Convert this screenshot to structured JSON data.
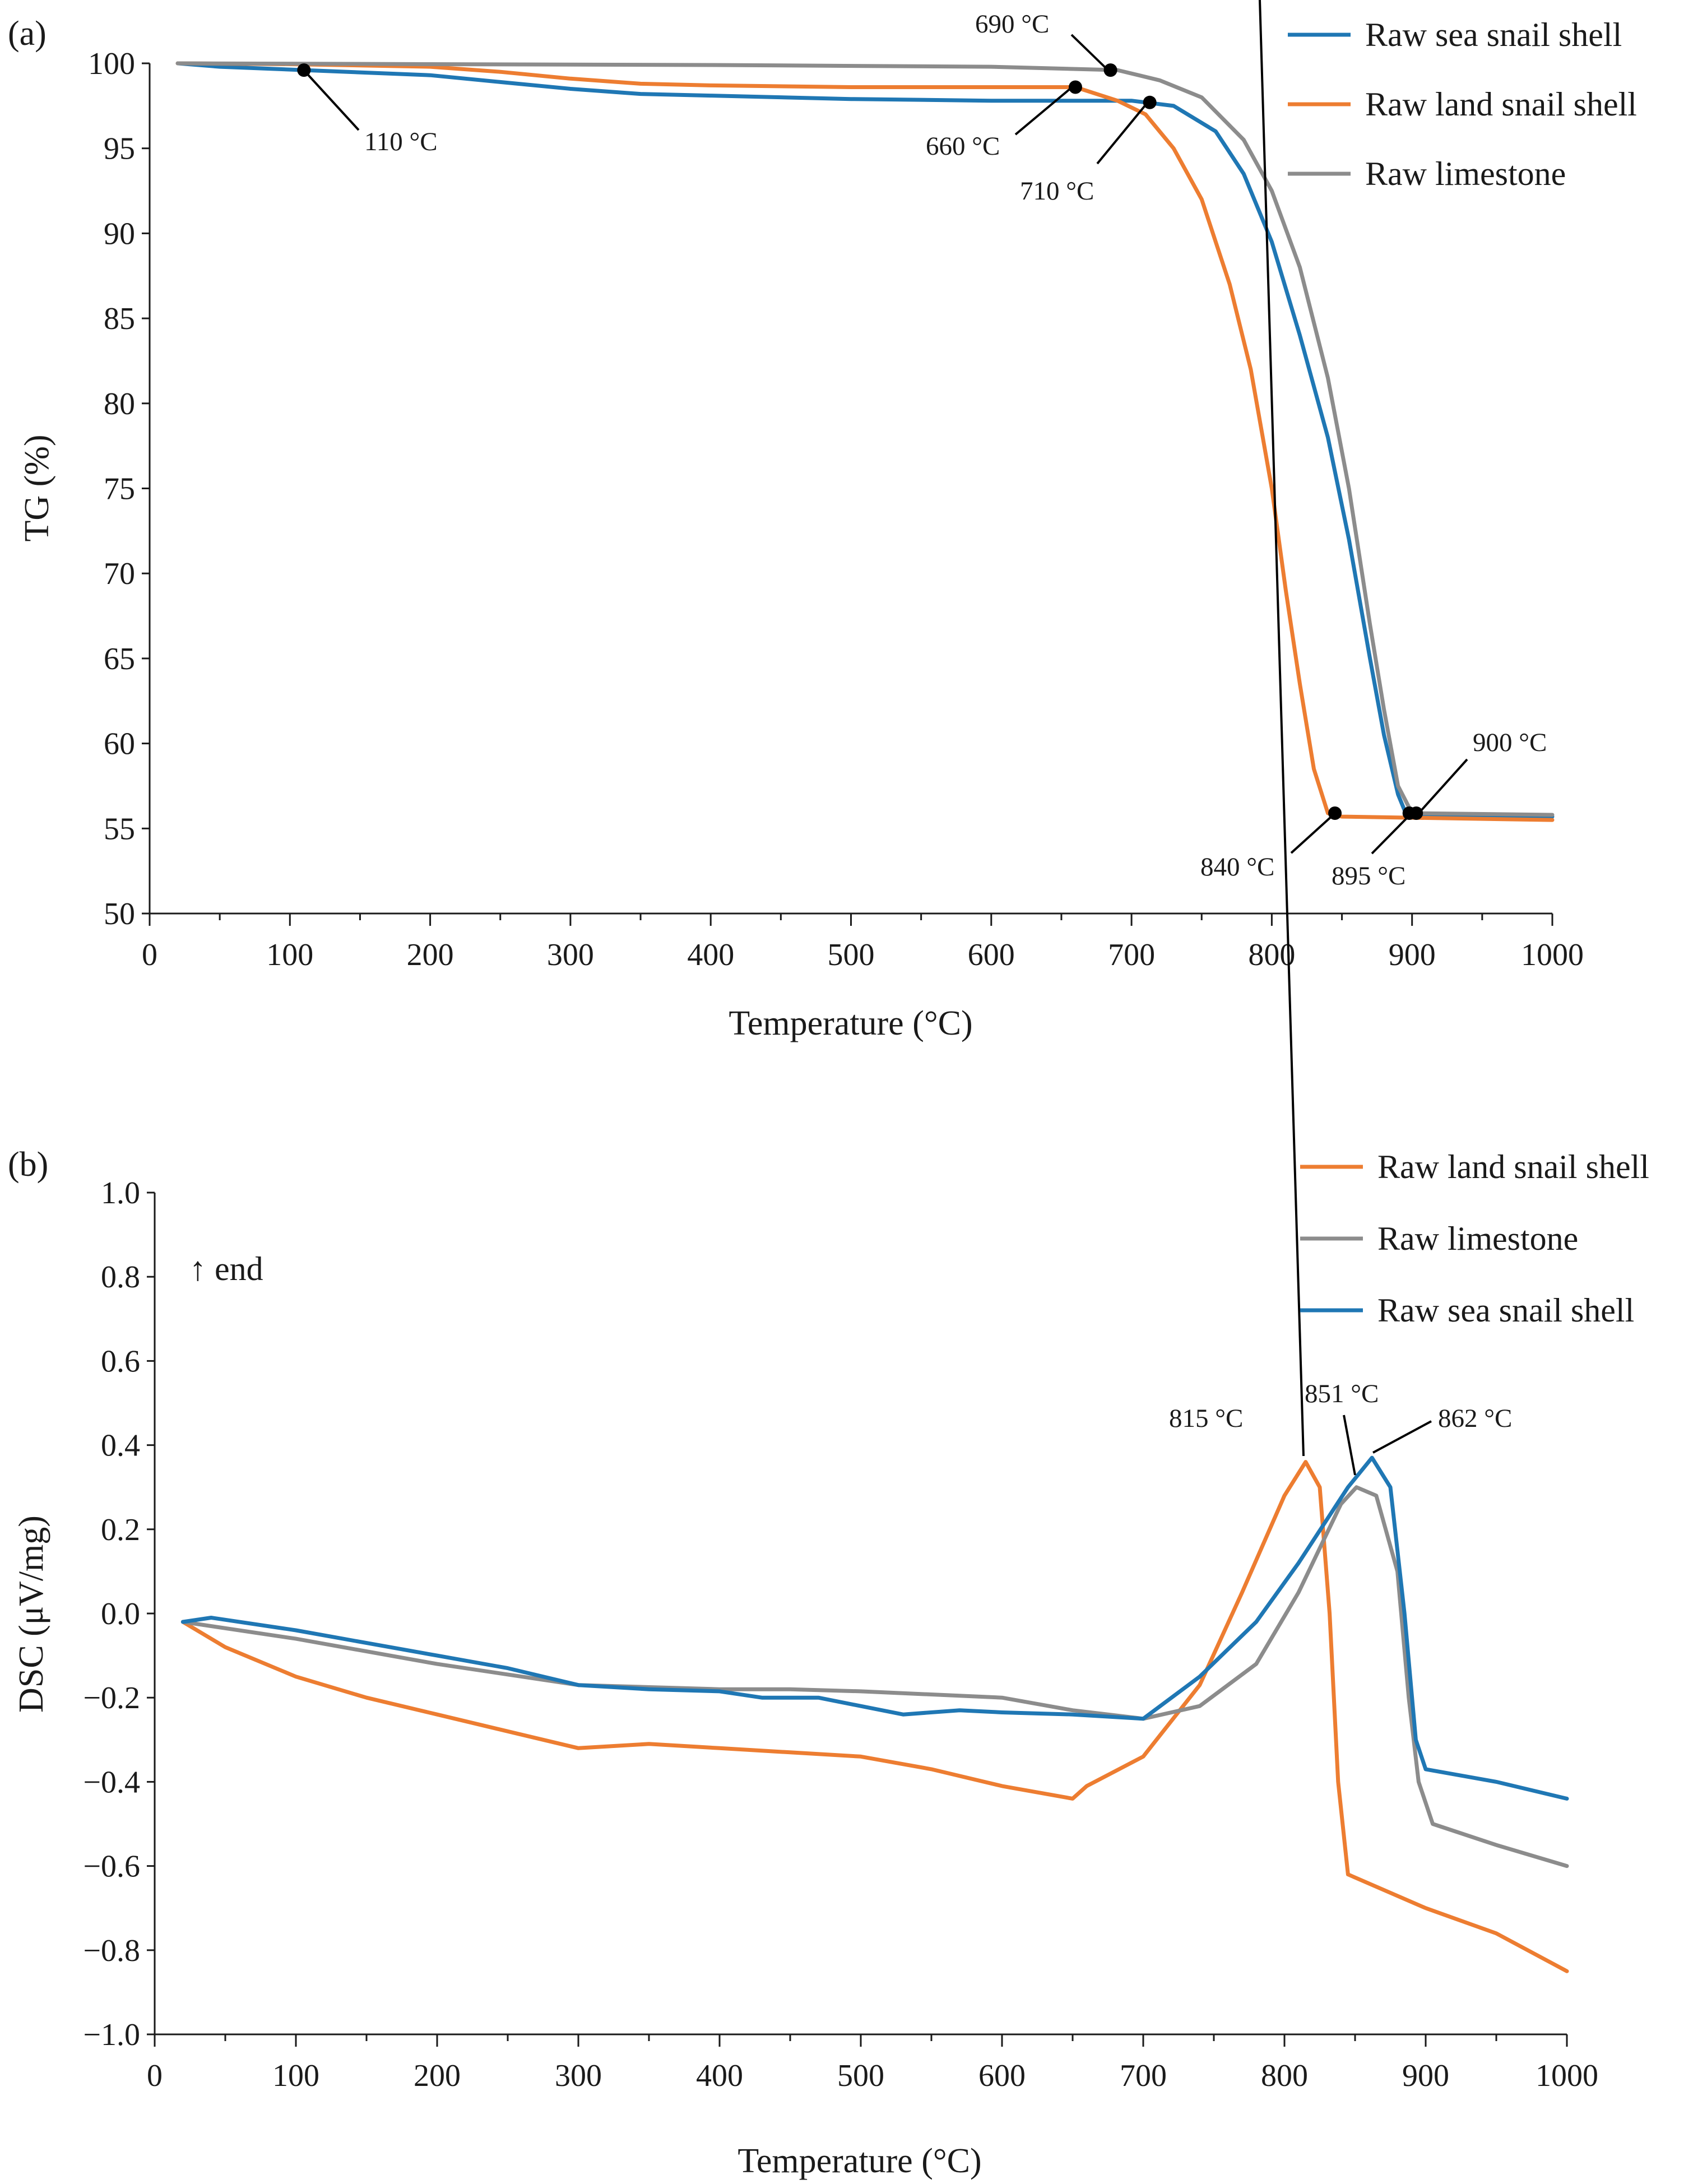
{
  "chart_data": [
    {
      "panel_label": "(a)",
      "type": "line",
      "xlabel": "Temperature (°C)",
      "ylabel": "TG (%)",
      "xlim": [
        0,
        1000
      ],
      "ylim": [
        50,
        100
      ],
      "x_ticks": [
        0,
        100,
        200,
        300,
        400,
        500,
        600,
        700,
        800,
        900,
        1000
      ],
      "y_ticks": [
        50,
        55,
        60,
        65,
        70,
        75,
        80,
        85,
        90,
        95,
        100
      ],
      "legend": [
        "Raw sea snail shell",
        "Raw land snail shell",
        "Raw limestone"
      ],
      "series": [
        {
          "name": "Raw sea snail shell",
          "color": "#1f77b4",
          "points": [
            [
              20,
              100
            ],
            [
              50,
              99.8
            ],
            [
              110,
              99.6
            ],
            [
              200,
              99.3
            ],
            [
              250,
              98.9
            ],
            [
              300,
              98.5
            ],
            [
              350,
              98.2
            ],
            [
              400,
              98.1
            ],
            [
              500,
              97.9
            ],
            [
              600,
              97.8
            ],
            [
              650,
              97.8
            ],
            [
              700,
              97.8
            ],
            [
              730,
              97.5
            ],
            [
              760,
              96.0
            ],
            [
              780,
              93.5
            ],
            [
              800,
              89.5
            ],
            [
              820,
              84.0
            ],
            [
              840,
              78.0
            ],
            [
              855,
              72.0
            ],
            [
              870,
              65.0
            ],
            [
              880,
              60.5
            ],
            [
              890,
              57.0
            ],
            [
              895,
              56.0
            ],
            [
              900,
              55.8
            ],
            [
              1000,
              55.7
            ]
          ]
        },
        {
          "name": "Raw land snail shell",
          "color": "#ed7d31",
          "points": [
            [
              20,
              100
            ],
            [
              100,
              99.95
            ],
            [
              200,
              99.8
            ],
            [
              250,
              99.5
            ],
            [
              300,
              99.1
            ],
            [
              350,
              98.8
            ],
            [
              400,
              98.7
            ],
            [
              500,
              98.6
            ],
            [
              600,
              98.6
            ],
            [
              660,
              98.6
            ],
            [
              690,
              97.8
            ],
            [
              710,
              97.0
            ],
            [
              730,
              95.0
            ],
            [
              750,
              92.0
            ],
            [
              770,
              87.0
            ],
            [
              785,
              82.0
            ],
            [
              800,
              75.0
            ],
            [
              810,
              69.0
            ],
            [
              820,
              63.5
            ],
            [
              830,
              58.5
            ],
            [
              840,
              55.9
            ],
            [
              850,
              55.7
            ],
            [
              1000,
              55.5
            ]
          ]
        },
        {
          "name": "Raw limestone",
          "color": "#8c8c8c",
          "points": [
            [
              20,
              100
            ],
            [
              200,
              99.95
            ],
            [
              400,
              99.9
            ],
            [
              600,
              99.8
            ],
            [
              690,
              99.6
            ],
            [
              720,
              99.0
            ],
            [
              750,
              98.0
            ],
            [
              780,
              95.5
            ],
            [
              800,
              92.5
            ],
            [
              820,
              88.0
            ],
            [
              840,
              81.5
            ],
            [
              855,
              75.0
            ],
            [
              870,
              67.0
            ],
            [
              880,
              62.0
            ],
            [
              890,
              57.5
            ],
            [
              900,
              55.9
            ],
            [
              1000,
              55.8
            ]
          ]
        }
      ],
      "annotations": [
        {
          "label": "110 °C",
          "x": 110,
          "y": 99.6
        },
        {
          "label": "660 °C",
          "x": 660,
          "y": 98.6
        },
        {
          "label": "690 °C",
          "x": 685,
          "y": 99.6
        },
        {
          "label": "710 °C",
          "x": 713,
          "y": 97.7
        },
        {
          "label": "840 °C",
          "x": 845,
          "y": 55.9
        },
        {
          "label": "895 °C",
          "x": 898,
          "y": 55.9
        },
        {
          "label": "900 °C",
          "x": 903,
          "y": 55.9
        }
      ]
    },
    {
      "panel_label": "(b)",
      "type": "line",
      "xlabel": "Temperature (°C)",
      "ylabel": "DSC (μV/mg)",
      "xlim": [
        0,
        1000
      ],
      "ylim": [
        -1.0,
        1.0
      ],
      "x_ticks": [
        0,
        100,
        200,
        300,
        400,
        500,
        600,
        700,
        800,
        900,
        1000
      ],
      "y_ticks": [
        -1.0,
        -0.8,
        -0.6,
        -0.4,
        -0.2,
        0.0,
        0.2,
        0.4,
        0.6,
        0.8,
        1.0
      ],
      "y_tick_labels": [
        "−1.0",
        "−0.8",
        "−0.6",
        "−0.4",
        "−0.2",
        "0.0",
        "0.2",
        "0.4",
        "0.6",
        "0.8",
        "1.0"
      ],
      "inner_note": "↑ end",
      "legend": [
        "Raw land snail shell",
        "Raw limestone",
        "Raw sea snail shell"
      ],
      "series": [
        {
          "name": "Raw land snail shell",
          "color": "#ed7d31",
          "points": [
            [
              20,
              -0.02
            ],
            [
              50,
              -0.08
            ],
            [
              100,
              -0.15
            ],
            [
              150,
              -0.2
            ],
            [
              200,
              -0.24
            ],
            [
              250,
              -0.28
            ],
            [
              300,
              -0.32
            ],
            [
              350,
              -0.31
            ],
            [
              400,
              -0.32
            ],
            [
              450,
              -0.33
            ],
            [
              500,
              -0.34
            ],
            [
              550,
              -0.37
            ],
            [
              600,
              -0.41
            ],
            [
              650,
              -0.44
            ],
            [
              660,
              -0.41
            ],
            [
              700,
              -0.34
            ],
            [
              740,
              -0.17
            ],
            [
              770,
              0.05
            ],
            [
              800,
              0.28
            ],
            [
              815,
              0.36
            ],
            [
              825,
              0.3
            ],
            [
              832,
              0.0
            ],
            [
              838,
              -0.4
            ],
            [
              845,
              -0.62
            ],
            [
              900,
              -0.7
            ],
            [
              950,
              -0.76
            ],
            [
              1000,
              -0.85
            ]
          ]
        },
        {
          "name": "Raw limestone",
          "color": "#8c8c8c",
          "points": [
            [
              20,
              -0.02
            ],
            [
              100,
              -0.06
            ],
            [
              200,
              -0.12
            ],
            [
              300,
              -0.17
            ],
            [
              400,
              -0.18
            ],
            [
              450,
              -0.18
            ],
            [
              500,
              -0.185
            ],
            [
              600,
              -0.2
            ],
            [
              650,
              -0.23
            ],
            [
              700,
              -0.25
            ],
            [
              740,
              -0.22
            ],
            [
              780,
              -0.12
            ],
            [
              810,
              0.05
            ],
            [
              840,
              0.26
            ],
            [
              851,
              0.3
            ],
            [
              865,
              0.28
            ],
            [
              880,
              0.1
            ],
            [
              888,
              -0.2
            ],
            [
              895,
              -0.4
            ],
            [
              905,
              -0.5
            ],
            [
              950,
              -0.55
            ],
            [
              1000,
              -0.6
            ]
          ]
        },
        {
          "name": "Raw sea snail shell",
          "color": "#1f77b4",
          "points": [
            [
              20,
              -0.02
            ],
            [
              40,
              -0.01
            ],
            [
              100,
              -0.04
            ],
            [
              150,
              -0.07
            ],
            [
              200,
              -0.1
            ],
            [
              250,
              -0.13
            ],
            [
              300,
              -0.17
            ],
            [
              350,
              -0.18
            ],
            [
              400,
              -0.185
            ],
            [
              430,
              -0.2
            ],
            [
              470,
              -0.2
            ],
            [
              530,
              -0.24
            ],
            [
              570,
              -0.23
            ],
            [
              600,
              -0.235
            ],
            [
              650,
              -0.24
            ],
            [
              700,
              -0.25
            ],
            [
              740,
              -0.15
            ],
            [
              780,
              -0.02
            ],
            [
              810,
              0.12
            ],
            [
              845,
              0.3
            ],
            [
              862,
              0.37
            ],
            [
              875,
              0.3
            ],
            [
              885,
              0.0
            ],
            [
              893,
              -0.3
            ],
            [
              900,
              -0.37
            ],
            [
              950,
              -0.4
            ],
            [
              1000,
              -0.44
            ]
          ]
        }
      ],
      "annotations": [
        {
          "label": "815 °C",
          "x": 815,
          "y": 0.36
        },
        {
          "label": "851 °C",
          "x": 851,
          "y": 0.3
        },
        {
          "label": "862 °C",
          "x": 862,
          "y": 0.37
        }
      ]
    }
  ]
}
